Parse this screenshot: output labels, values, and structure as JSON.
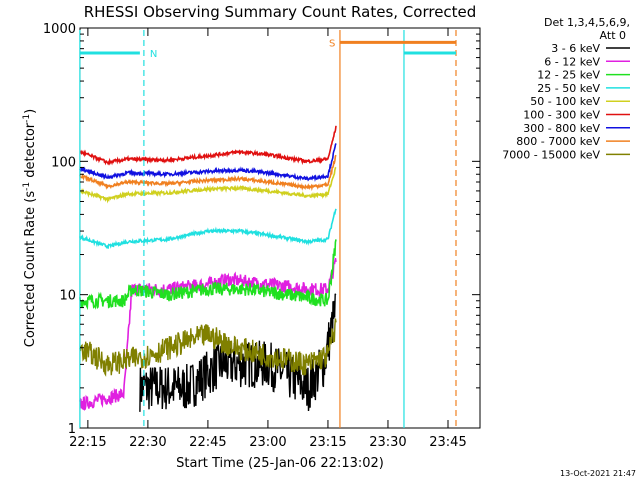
{
  "chart_data": {
    "type": "line",
    "title": "RHESSI Observing Summary Count Rates, Corrected",
    "xlabel": "Start Time (25-Jan-06 22:13:02)",
    "ylabel": "Corrected Count Rate (s",
    "ylabel_sup1": "-1",
    "ylabel_mid": " detector",
    "ylabel_sup2": "-1",
    "ylabel_end": ")",
    "y_scale": "log",
    "ylim": [
      1,
      1000
    ],
    "xlim": [
      "22:13:02",
      "23:53:00"
    ],
    "x_ticks": [
      "22:15",
      "22:30",
      "22:45",
      "23:00",
      "23:15",
      "23:30",
      "23:45"
    ],
    "y_ticks": [
      {
        "value": 1,
        "label": "1"
      },
      {
        "value": 10,
        "label": "10"
      },
      {
        "value": 100,
        "label": "100"
      },
      {
        "value": 1000,
        "label": "1000"
      }
    ],
    "grid": false,
    "legend_position": "right",
    "legend_title": "Det 1,3,4,5,6,9,",
    "legend_subtitle": "Att 0",
    "series": [
      {
        "name": "3 - 6 keV",
        "color": "#000000",
        "points": [
          [
            "22:28",
            2
          ],
          [
            "22:40",
            2
          ],
          [
            "22:48",
            3
          ],
          [
            "23:00",
            3
          ],
          [
            "23:10",
            2
          ],
          [
            "23:14",
            3
          ],
          [
            "23:17",
            8
          ]
        ]
      },
      {
        "name": "6 - 12 keV",
        "color": "#e020e0",
        "points": [
          [
            "22:13",
            1.5
          ],
          [
            "22:24",
            1.8
          ],
          [
            "22:26",
            11
          ],
          [
            "22:35",
            11
          ],
          [
            "22:45",
            12
          ],
          [
            "22:50",
            13
          ],
          [
            "23:00",
            12
          ],
          [
            "23:10",
            11
          ],
          [
            "23:15",
            11
          ],
          [
            "23:17",
            18
          ]
        ]
      },
      {
        "name": "12 - 25 keV",
        "color": "#20e020",
        "points": [
          [
            "22:13",
            9
          ],
          [
            "22:24",
            9
          ],
          [
            "22:26",
            11
          ],
          [
            "22:35",
            10
          ],
          [
            "22:45",
            11
          ],
          [
            "22:55",
            11
          ],
          [
            "23:05",
            10
          ],
          [
            "23:15",
            9
          ],
          [
            "23:17",
            25
          ]
        ]
      },
      {
        "name": "25 - 50 keV",
        "color": "#20e0e0",
        "points": [
          [
            "22:13",
            27
          ],
          [
            "22:20",
            23
          ],
          [
            "22:25",
            25
          ],
          [
            "22:35",
            26
          ],
          [
            "22:45",
            30
          ],
          [
            "22:53",
            30
          ],
          [
            "23:00",
            28
          ],
          [
            "23:10",
            25
          ],
          [
            "23:15",
            26
          ],
          [
            "23:17",
            45
          ]
        ]
      },
      {
        "name": "50 - 100 keV",
        "color": "#d0d020",
        "points": [
          [
            "22:13",
            60
          ],
          [
            "22:20",
            52
          ],
          [
            "22:25",
            57
          ],
          [
            "22:35",
            58
          ],
          [
            "22:45",
            62
          ],
          [
            "22:53",
            63
          ],
          [
            "23:00",
            60
          ],
          [
            "23:10",
            55
          ],
          [
            "23:15",
            57
          ],
          [
            "23:17",
            90
          ]
        ]
      },
      {
        "name": "100 - 300 keV",
        "color": "#e01010",
        "points": [
          [
            "22:13",
            118
          ],
          [
            "22:20",
            98
          ],
          [
            "22:25",
            104
          ],
          [
            "22:35",
            102
          ],
          [
            "22:45",
            110
          ],
          [
            "22:53",
            118
          ],
          [
            "23:00",
            112
          ],
          [
            "23:10",
            100
          ],
          [
            "23:15",
            104
          ],
          [
            "23:17",
            180
          ]
        ]
      },
      {
        "name": "300 - 800 keV",
        "color": "#1010e0",
        "points": [
          [
            "22:13",
            88
          ],
          [
            "22:20",
            76
          ],
          [
            "22:25",
            82
          ],
          [
            "22:35",
            80
          ],
          [
            "22:45",
            84
          ],
          [
            "22:53",
            86
          ],
          [
            "23:00",
            82
          ],
          [
            "23:10",
            74
          ],
          [
            "23:15",
            78
          ],
          [
            "23:17",
            135
          ]
        ]
      },
      {
        "name": "800 - 7000 keV",
        "color": "#f08020",
        "points": [
          [
            "22:13",
            78
          ],
          [
            "22:20",
            65
          ],
          [
            "22:25",
            70
          ],
          [
            "22:35",
            68
          ],
          [
            "22:45",
            72
          ],
          [
            "22:53",
            74
          ],
          [
            "23:00",
            70
          ],
          [
            "23:10",
            64
          ],
          [
            "23:15",
            67
          ],
          [
            "23:17",
            110
          ]
        ]
      },
      {
        "name": "7000 - 15000 keV",
        "color": "#808000",
        "points": [
          [
            "22:13",
            4
          ],
          [
            "22:20",
            3
          ],
          [
            "22:30",
            3.5
          ],
          [
            "22:40",
            4.5
          ],
          [
            "22:45",
            5
          ],
          [
            "22:52",
            4
          ],
          [
            "23:00",
            3.5
          ],
          [
            "23:10",
            3
          ],
          [
            "23:15",
            3.5
          ],
          [
            "23:17",
            6
          ]
        ]
      }
    ],
    "annotations": {
      "N": {
        "label": "N",
        "color": "#20e0e0",
        "time": "22:29",
        "level_start": "22:13",
        "level_end": "22:28"
      },
      "S": {
        "label": "S",
        "color": "#f08020",
        "time": "23:18",
        "level_start": "23:18",
        "level_end": "23:47"
      },
      "cyan_markers": [
        "22:13",
        "22:29",
        "23:34"
      ],
      "cyan_bar": {
        "start": "23:34",
        "end": "23:47",
        "level": 650
      },
      "orange_markers": [
        "23:18",
        "23:47"
      ]
    }
  },
  "footer_date": "13-Oct-2021 21:47"
}
